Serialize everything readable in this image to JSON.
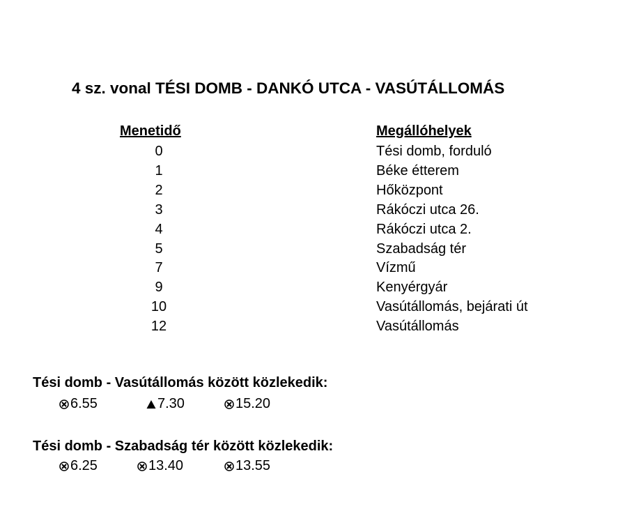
{
  "title": "4 sz. vonal TÉSI DOMB - DANKÓ UTCA - VASÚTÁLLOMÁS",
  "headers": {
    "time": "Menetidő",
    "stops": "Megállóhelyek"
  },
  "stops": [
    {
      "time": "0",
      "name": "Tési domb, forduló"
    },
    {
      "time": "1",
      "name": "Béke étterem"
    },
    {
      "time": "2",
      "name": "Hőközpont"
    },
    {
      "time": "3",
      "name": "Rákóczi utca 26."
    },
    {
      "time": "4",
      "name": "Rákóczi utca 2."
    },
    {
      "time": "5",
      "name": "Szabadság tér"
    },
    {
      "time": "7",
      "name": "Vízmű"
    },
    {
      "time": "9",
      "name": "Kenyérgyár"
    },
    {
      "time": "10",
      "name": "Vasútállomás, bejárati út"
    },
    {
      "time": "12",
      "name": "Vasútállomás"
    }
  ],
  "sections": [
    {
      "heading": "Tési domb - Vasútállomás között közlekedik:",
      "departures": [
        {
          "symbol": "school-day-icon",
          "time": "6.55"
        },
        {
          "symbol": "triangle-icon",
          "time": "7.30"
        },
        {
          "symbol": "school-day-icon",
          "time": "15.20"
        }
      ]
    },
    {
      "heading": "Tési domb - Szabadság tér között közlekedik:",
      "departures": [
        {
          "symbol": "school-day-icon",
          "time": "6.25"
        },
        {
          "symbol": "school-day-icon",
          "time": "13.40"
        },
        {
          "symbol": "school-day-icon",
          "time": "13.55"
        }
      ]
    }
  ]
}
